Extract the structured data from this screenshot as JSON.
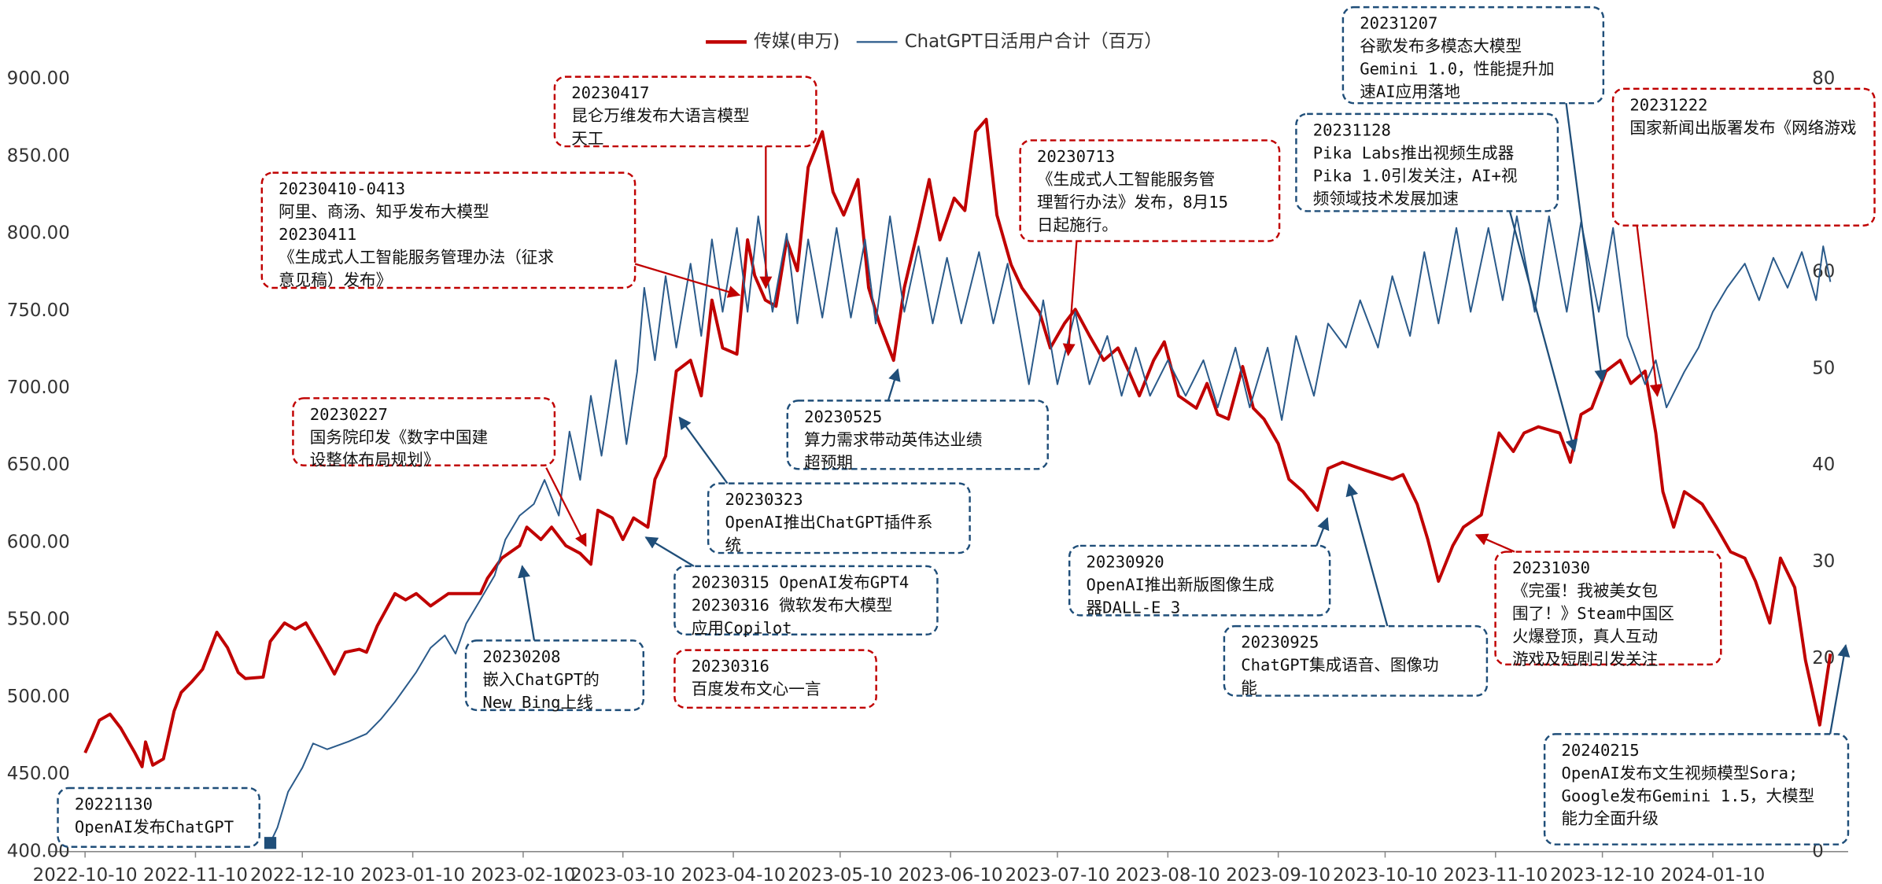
{
  "chart_data": {
    "type": "line",
    "series": [
      {
        "name": "传媒(申万)",
        "color": "#c00000",
        "axis": "y",
        "x": [
          "2022-10-10",
          "2022-10-12",
          "2022-10-14",
          "2022-10-17",
          "2022-10-20",
          "2022-10-24",
          "2022-10-26",
          "2022-10-27",
          "2022-10-29",
          "2022-11-01",
          "2022-11-04",
          "2022-11-06",
          "2022-11-09",
          "2022-11-12",
          "2022-11-16",
          "2022-11-19",
          "2022-11-22",
          "2022-11-24",
          "2022-11-29",
          "2022-12-01",
          "2022-12-05",
          "2022-12-08",
          "2022-12-11",
          "2022-12-15",
          "2022-12-19",
          "2022-12-22",
          "2022-12-26",
          "2022-12-28",
          "2022-12-31",
          "2023-01-05",
          "2023-01-08",
          "2023-01-11",
          "2023-01-15",
          "2023-01-20",
          "2023-01-29",
          "2023-01-31",
          "2023-02-04",
          "2023-02-09",
          "2023-02-11",
          "2023-02-15",
          "2023-02-18",
          "2023-02-22",
          "2023-02-26",
          "2023-03-01",
          "2023-03-03",
          "2023-03-07",
          "2023-03-10",
          "2023-03-13",
          "2023-03-17",
          "2023-03-19",
          "2023-03-22",
          "2023-03-25",
          "2023-03-29",
          "2023-04-01",
          "2023-04-04",
          "2023-04-07",
          "2023-04-11",
          "2023-04-14",
          "2023-04-16",
          "2023-04-19",
          "2023-04-22",
          "2023-04-25",
          "2023-04-28",
          "2023-05-01",
          "2023-05-05",
          "2023-05-08",
          "2023-05-11",
          "2023-05-15",
          "2023-05-18",
          "2023-05-21",
          "2023-05-25",
          "2023-05-28",
          "2023-06-01",
          "2023-06-04",
          "2023-06-07",
          "2023-06-11",
          "2023-06-14",
          "2023-06-17",
          "2023-06-20",
          "2023-06-23",
          "2023-06-27",
          "2023-06-30",
          "2023-07-05",
          "2023-07-08",
          "2023-07-12",
          "2023-07-15",
          "2023-07-19",
          "2023-07-23",
          "2023-07-27",
          "2023-07-30",
          "2023-08-02",
          "2023-08-06",
          "2023-08-09",
          "2023-08-13",
          "2023-08-18",
          "2023-08-21",
          "2023-08-24",
          "2023-08-27",
          "2023-08-31",
          "2023-09-03",
          "2023-09-06",
          "2023-09-10",
          "2023-09-13",
          "2023-09-17",
          "2023-09-21",
          "2023-09-24",
          "2023-09-28",
          "2023-10-03",
          "2023-10-12",
          "2023-10-15",
          "2023-10-19",
          "2023-10-22",
          "2023-10-25",
          "2023-10-29",
          "2023-11-01",
          "2023-11-06",
          "2023-11-11",
          "2023-11-15",
          "2023-11-18",
          "2023-11-22",
          "2023-11-28",
          "2023-12-01",
          "2023-12-04",
          "2023-12-07",
          "2023-12-11",
          "2023-12-15",
          "2023-12-18",
          "2023-12-22",
          "2023-12-25",
          "2023-12-27",
          "2023-12-30",
          "2024-01-02",
          "2024-01-07",
          "2024-01-11",
          "2024-01-15",
          "2024-01-19",
          "2024-01-22",
          "2024-01-26",
          "2024-01-29",
          "2024-02-02",
          "2024-02-05",
          "2024-02-09",
          "2024-02-12"
        ],
        "values": [
          464,
          474,
          485,
          489,
          480,
          464,
          455,
          471,
          456,
          460,
          491,
          503,
          510,
          518,
          542,
          532,
          516,
          512,
          513,
          536,
          548,
          544,
          548,
          532,
          515,
          529,
          531,
          529,
          546,
          567,
          563,
          567,
          559,
          567,
          567,
          577,
          590,
          598,
          610,
          602,
          610,
          598,
          593,
          586,
          621,
          616,
          602,
          616,
          610,
          641,
          656,
          711,
          718,
          695,
          757,
          726,
          722,
          796,
          773,
          757,
          753,
          796,
          776,
          843,
          866,
          827,
          812,
          835,
          765,
          742,
          718,
          765,
          804,
          835,
          796,
          823,
          815,
          866,
          874,
          812,
          780,
          765,
          749,
          726,
          742,
          751,
          734,
          718,
          726,
          711,
          695,
          718,
          730,
          695,
          687,
          703,
          683,
          680,
          714,
          687,
          680,
          664,
          641,
          633,
          621,
          648,
          652,
          648,
          641,
          644,
          625,
          602,
          575,
          598,
          610,
          618,
          671,
          659,
          671,
          675,
          671,
          652,
          683,
          687,
          711,
          718,
          703,
          711,
          671,
          633,
          610,
          633,
          625,
          610,
          594,
          590,
          575,
          548,
          590,
          571,
          524,
          482,
          528
        ]
      },
      {
        "name": "ChatGPT日活用户合计（百万）",
        "color": "#2a5a8a",
        "axis": "y2",
        "x": [
          "2022-12-01",
          "2022-12-03",
          "2022-12-06",
          "2022-12-10",
          "2022-12-13",
          "2022-12-17",
          "2022-12-23",
          "2022-12-28",
          "2023-01-01",
          "2023-01-05",
          "2023-01-11",
          "2023-01-15",
          "2023-01-19",
          "2023-01-22",
          "2023-01-25",
          "2023-01-29",
          "2023-02-02",
          "2023-02-05",
          "2023-02-09",
          "2023-02-13",
          "2023-02-16",
          "2023-02-20",
          "2023-02-23",
          "2023-02-26",
          "2023-03-01",
          "2023-03-04",
          "2023-03-08",
          "2023-03-11",
          "2023-03-14",
          "2023-03-16",
          "2023-03-19",
          "2023-03-22",
          "2023-03-25",
          "2023-03-29",
          "2023-04-01",
          "2023-04-04",
          "2023-04-07",
          "2023-04-11",
          "2023-04-14",
          "2023-04-17",
          "2023-04-21",
          "2023-04-25",
          "2023-04-28",
          "2023-05-01",
          "2023-05-05",
          "2023-05-09",
          "2023-05-13",
          "2023-05-17",
          "2023-05-20",
          "2023-05-24",
          "2023-05-28",
          "2023-06-01",
          "2023-06-05",
          "2023-06-09",
          "2023-06-13",
          "2023-06-18",
          "2023-06-22",
          "2023-06-26",
          "2023-07-02",
          "2023-07-06",
          "2023-07-10",
          "2023-07-15",
          "2023-07-19",
          "2023-07-24",
          "2023-07-28",
          "2023-08-01",
          "2023-08-05",
          "2023-08-10",
          "2023-08-15",
          "2023-08-20",
          "2023-08-24",
          "2023-08-29",
          "2023-09-02",
          "2023-09-07",
          "2023-09-11",
          "2023-09-15",
          "2023-09-20",
          "2023-09-24",
          "2023-09-29",
          "2023-10-03",
          "2023-10-08",
          "2023-10-12",
          "2023-10-17",
          "2023-10-21",
          "2023-10-25",
          "2023-10-30",
          "2023-11-03",
          "2023-11-08",
          "2023-11-12",
          "2023-11-16",
          "2023-11-21",
          "2023-11-25",
          "2023-11-30",
          "2023-12-04",
          "2023-12-09",
          "2023-12-13",
          "2023-12-17",
          "2023-12-22",
          "2023-12-25",
          "2023-12-28",
          "2024-01-02",
          "2024-01-06",
          "2024-01-10",
          "2024-01-14",
          "2024-01-19",
          "2024-01-23",
          "2024-01-27",
          "2024-01-31",
          "2024-02-04",
          "2024-02-08",
          "2024-02-10",
          "2024-02-12"
        ],
        "values": [
          0.9,
          2.5,
          6.2,
          8.7,
          11.2,
          10.6,
          11.4,
          12.2,
          13.7,
          15.5,
          18.6,
          21.1,
          22.4,
          20.5,
          23.6,
          26.1,
          28.6,
          32.3,
          34.8,
          36.0,
          38.5,
          34.8,
          43.5,
          38.5,
          47.2,
          41.0,
          50.9,
          42.2,
          49.7,
          58.4,
          50.9,
          59.6,
          52.2,
          60.9,
          53.4,
          63.4,
          55.9,
          64.6,
          55.9,
          65.8,
          55.9,
          64.0,
          54.7,
          63.4,
          55.3,
          64.6,
          55.3,
          63.4,
          54.7,
          65.8,
          55.9,
          62.7,
          54.7,
          61.5,
          54.7,
          62.1,
          54.7,
          60.9,
          48.4,
          57.1,
          48.4,
          55.9,
          48.4,
          53.4,
          47.2,
          52.2,
          47.2,
          50.9,
          47.2,
          50.9,
          46.0,
          52.2,
          46.0,
          52.2,
          44.7,
          53.4,
          47.2,
          54.7,
          52.2,
          57.1,
          52.2,
          59.6,
          53.4,
          62.1,
          54.7,
          64.6,
          55.9,
          64.6,
          57.1,
          65.8,
          55.9,
          65.8,
          55.9,
          65.2,
          55.9,
          64.6,
          53.4,
          48.4,
          50.9,
          46.0,
          49.7,
          52.2,
          55.9,
          58.4,
          60.9,
          57.1,
          61.5,
          58.4,
          62.1,
          57.1,
          62.7,
          59.0
        ]
      }
    ],
    "xlim": [
      "2022-09-30",
      "2024-02-17"
    ],
    "xticks": [
      "2022-10-10",
      "2022-11-10",
      "2022-12-10",
      "2023-01-10",
      "2023-02-10",
      "2023-03-10",
      "2023-04-10",
      "2023-05-10",
      "2023-06-10",
      "2023-07-10",
      "2023-08-10",
      "2023-09-10",
      "2023-10-10",
      "2023-11-10",
      "2023-12-10",
      "2024-01-10"
    ],
    "ylim": [
      400,
      900
    ],
    "yticks": [
      {
        "value": 400,
        "label": "400.00"
      },
      {
        "value": 450,
        "label": "450.00"
      },
      {
        "value": 500,
        "label": "500.00"
      },
      {
        "value": 550,
        "label": "550.00"
      },
      {
        "value": 600,
        "label": "600.00"
      },
      {
        "value": 650,
        "label": "650.00"
      },
      {
        "value": 700,
        "label": "700.00"
      },
      {
        "value": 750,
        "label": "750.00"
      },
      {
        "value": 800,
        "label": "800.00"
      },
      {
        "value": 850,
        "label": "850.00"
      },
      {
        "value": 900,
        "label": "900.00"
      }
    ],
    "y2lim": [
      0,
      80
    ],
    "y2ticks": [
      0,
      10,
      20,
      30,
      40,
      50,
      60,
      70,
      80
    ],
    "legend": "top",
    "annotations": [
      {
        "color": "#1f4e79",
        "lines": [
          "20221130",
          "OpenAI发布ChatGPT"
        ]
      },
      {
        "color": "#1f4e79",
        "lines": [
          "20230208",
          "嵌入ChatGPT的",
          "New Bing上线"
        ]
      },
      {
        "color": "#c00000",
        "lines": [
          "20230227",
          "国务院印发《数字中国建",
          "设整体布局规划》"
        ]
      },
      {
        "color": "#c00000",
        "lines": [
          "20230410-0413",
          "阿里、商汤、知乎发布大模型",
          "20230411",
          "《生成式人工智能服务管理办法（征求",
          "意见稿）发布》"
        ]
      },
      {
        "color": "#c00000",
        "lines": [
          "20230417",
          "昆仑万维发布大语言模型",
          "天工"
        ]
      },
      {
        "color": "#1f4e79",
        "lines": [
          "20230323",
          "OpenAI推出ChatGPT插件系",
          "统"
        ]
      },
      {
        "color": "#1f4e79",
        "lines": [
          "20230315 OpenAI发布GPT4",
          "20230316 微软发布大模型",
          "应用Copilot"
        ]
      },
      {
        "color": "#c00000",
        "lines": [
          "20230316",
          "百度发布文心一言"
        ]
      },
      {
        "color": "#1f4e79",
        "lines": [
          "20230525",
          "算力需求带动英伟达业绩",
          "超预期"
        ]
      },
      {
        "color": "#c00000",
        "lines": [
          "20230713",
          "《生成式人工智能服务管",
          "理暂行办法》发布，8月15",
          "日起施行。"
        ]
      },
      {
        "color": "#1f4e79",
        "lines": [
          "20230920",
          "OpenAI推出新版图像生成",
          "器DALL-E 3"
        ]
      },
      {
        "color": "#1f4e79",
        "lines": [
          "20230925",
          "ChatGPT集成语音、图像功",
          "能"
        ]
      },
      {
        "color": "#1f4e79",
        "lines": [
          "20231128",
          "Pika Labs推出视频生成器",
          "Pika 1.0引发关注，AI+视",
          "频领域技术发展加速"
        ]
      },
      {
        "color": "#1f4e79",
        "lines": [
          "20231207",
          "谷歌发布多模态大模型",
          "Gemini 1.0，性能提升加",
          "速AI应用落地"
        ]
      },
      {
        "color": "#c00000",
        "lines": [
          "20231222",
          "国家新闻出版署发布《网络游戏"
        ]
      },
      {
        "color": "#c00000",
        "lines": [
          "20231030",
          "《完蛋！我被美女包",
          "围了！》Steam中国区",
          "火爆登顶，真人互动",
          "游戏及短剧引发关注"
        ]
      },
      {
        "color": "#1f4e79",
        "lines": [
          "20240215",
          "OpenAI发布文生视频模型Sora;",
          "Google发布Gemini 1.5，大模型",
          "能力全面升级"
        ]
      }
    ]
  }
}
